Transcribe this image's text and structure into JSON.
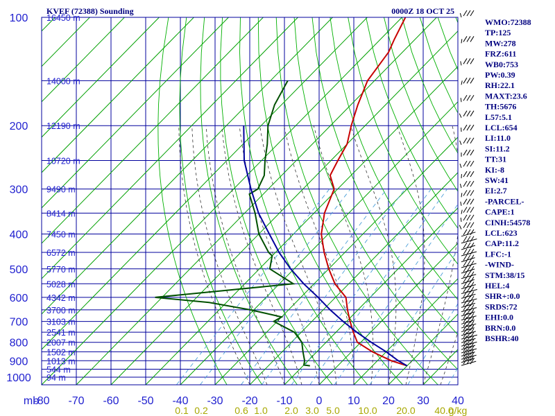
{
  "chart_data": {
    "type": "line",
    "title": "KVEF (72388) Sounding",
    "valid_time": "0000Z 18 OCT 25",
    "pressure_axis_label": "mb",
    "pressure_levels": [
      100,
      200,
      300,
      400,
      500,
      600,
      700,
      800,
      900,
      1000
    ],
    "temperature_ticks": [
      -80,
      -70,
      -60,
      -50,
      -40,
      -30,
      -20,
      -10,
      0,
      10,
      20,
      30,
      40
    ],
    "mixing_ratio_ticks": [
      "0.1",
      "0.2",
      "0.6",
      "1.0",
      "2.0",
      "3.0",
      "5.0",
      "10.0",
      "20.0",
      "40.0"
    ],
    "mixing_ratio_unit": "g/kg",
    "mixing_ratio_values": [
      0.1,
      0.2,
      0.6,
      1.0,
      2.0,
      3.0,
      5.0,
      10.0,
      20.0,
      40.0
    ],
    "height_labels": [
      {
        "p": 100,
        "label": "16450 m"
      },
      {
        "p": 150,
        "label": "14000 m"
      },
      {
        "p": 200,
        "label": "12190 m"
      },
      {
        "p": 250,
        "label": "10720 m"
      },
      {
        "p": 300,
        "label": "9490 m"
      },
      {
        "p": 350,
        "label": "8414 m"
      },
      {
        "p": 400,
        "label": "7450 m"
      },
      {
        "p": 450,
        "label": "6572 m"
      },
      {
        "p": 500,
        "label": "5770 m"
      },
      {
        "p": 550,
        "label": "5028 m"
      },
      {
        "p": 600,
        "label": "4342 m"
      },
      {
        "p": 650,
        "label": "3700 m"
      },
      {
        "p": 700,
        "label": "3103 m"
      },
      {
        "p": 750,
        "label": "2541 m"
      },
      {
        "p": 800,
        "label": "2007 m"
      },
      {
        "p": 850,
        "label": "1502 m"
      },
      {
        "p": 900,
        "label": "1013 m"
      },
      {
        "p": 950,
        "label": "544 m"
      },
      {
        "p": 1000,
        "label": "94 m"
      }
    ],
    "series": [
      {
        "name": "temperature",
        "color": "#c80000",
        "points": [
          [
            100,
            -79
          ],
          [
            115,
            -76
          ],
          [
            125,
            -74
          ],
          [
            150,
            -72
          ],
          [
            175,
            -68
          ],
          [
            200,
            -64
          ],
          [
            225,
            -60
          ],
          [
            250,
            -58
          ],
          [
            275,
            -56
          ],
          [
            300,
            -51
          ],
          [
            350,
            -47
          ],
          [
            400,
            -42
          ],
          [
            450,
            -36
          ],
          [
            500,
            -30
          ],
          [
            550,
            -24
          ],
          [
            600,
            -17
          ],
          [
            650,
            -13
          ],
          [
            700,
            -9
          ],
          [
            750,
            -5
          ],
          [
            800,
            -1
          ],
          [
            850,
            6
          ],
          [
            900,
            14
          ],
          [
            930,
            20
          ]
        ]
      },
      {
        "name": "dewpoint",
        "color": "#005000",
        "points": [
          [
            150,
            -95
          ],
          [
            175,
            -92
          ],
          [
            200,
            -88
          ],
          [
            225,
            -83
          ],
          [
            250,
            -79
          ],
          [
            275,
            -75
          ],
          [
            300,
            -73
          ],
          [
            310,
            -74
          ],
          [
            350,
            -67
          ],
          [
            400,
            -60
          ],
          [
            450,
            -52
          ],
          [
            460,
            -50
          ],
          [
            500,
            -47
          ],
          [
            550,
            -36
          ],
          [
            600,
            -72
          ],
          [
            620,
            -55
          ],
          [
            650,
            -41
          ],
          [
            680,
            -30
          ],
          [
            700,
            -31
          ],
          [
            750,
            -22
          ],
          [
            800,
            -17
          ],
          [
            850,
            -14
          ],
          [
            900,
            -11
          ],
          [
            925,
            -10
          ],
          [
            930,
            -8
          ]
        ]
      },
      {
        "name": "parcel",
        "color": "#00009c",
        "points": [
          [
            930,
            20
          ],
          [
            900,
            16
          ],
          [
            850,
            10
          ],
          [
            800,
            3
          ],
          [
            750,
            -4
          ],
          [
            700,
            -11
          ],
          [
            650,
            -18
          ],
          [
            600,
            -25
          ],
          [
            550,
            -33
          ],
          [
            500,
            -41
          ],
          [
            450,
            -49
          ],
          [
            400,
            -57
          ],
          [
            350,
            -66
          ],
          [
            300,
            -75
          ],
          [
            250,
            -85
          ],
          [
            200,
            -95
          ]
        ]
      }
    ],
    "wind_barbs_present": true
  },
  "stats": [
    "WMO:72388",
    "TP:125",
    "MW:278",
    "FRZ:611",
    "WB0:753",
    "PW:0.39",
    "RH:22.1",
    "MAXT:23.6",
    "TH:5676",
    "L57:5.1",
    "LCL:654",
    "LI:11.0",
    "SI:11.2",
    "TT:31",
    "KI:-8",
    "SW:41",
    "EI:2.7",
    "-PARCEL-",
    "CAPE:1",
    "CINH:54578",
    "LCL:623",
    "CAP:11.2",
    "LFC:-1",
    "-WIND-",
    "STM:38/15",
    "HEL:4",
    "SHR+:0.0",
    "SRDS:72",
    "EHI:0.0",
    "BRN:0.0",
    "BSHR:40"
  ],
  "colors": {
    "grid": "#00009c",
    "isotherm": "#00a000",
    "dry_adiabat": "#00b000",
    "moist_adiabat": "#333333",
    "mixing_ratio": "#4a9ed8",
    "temperature": "#c80000",
    "dewpoint": "#005000",
    "parcel": "#00009c",
    "axis_text": "#1f1fcf",
    "mixing_text": "#a8a800",
    "title_text": "#00007f"
  }
}
